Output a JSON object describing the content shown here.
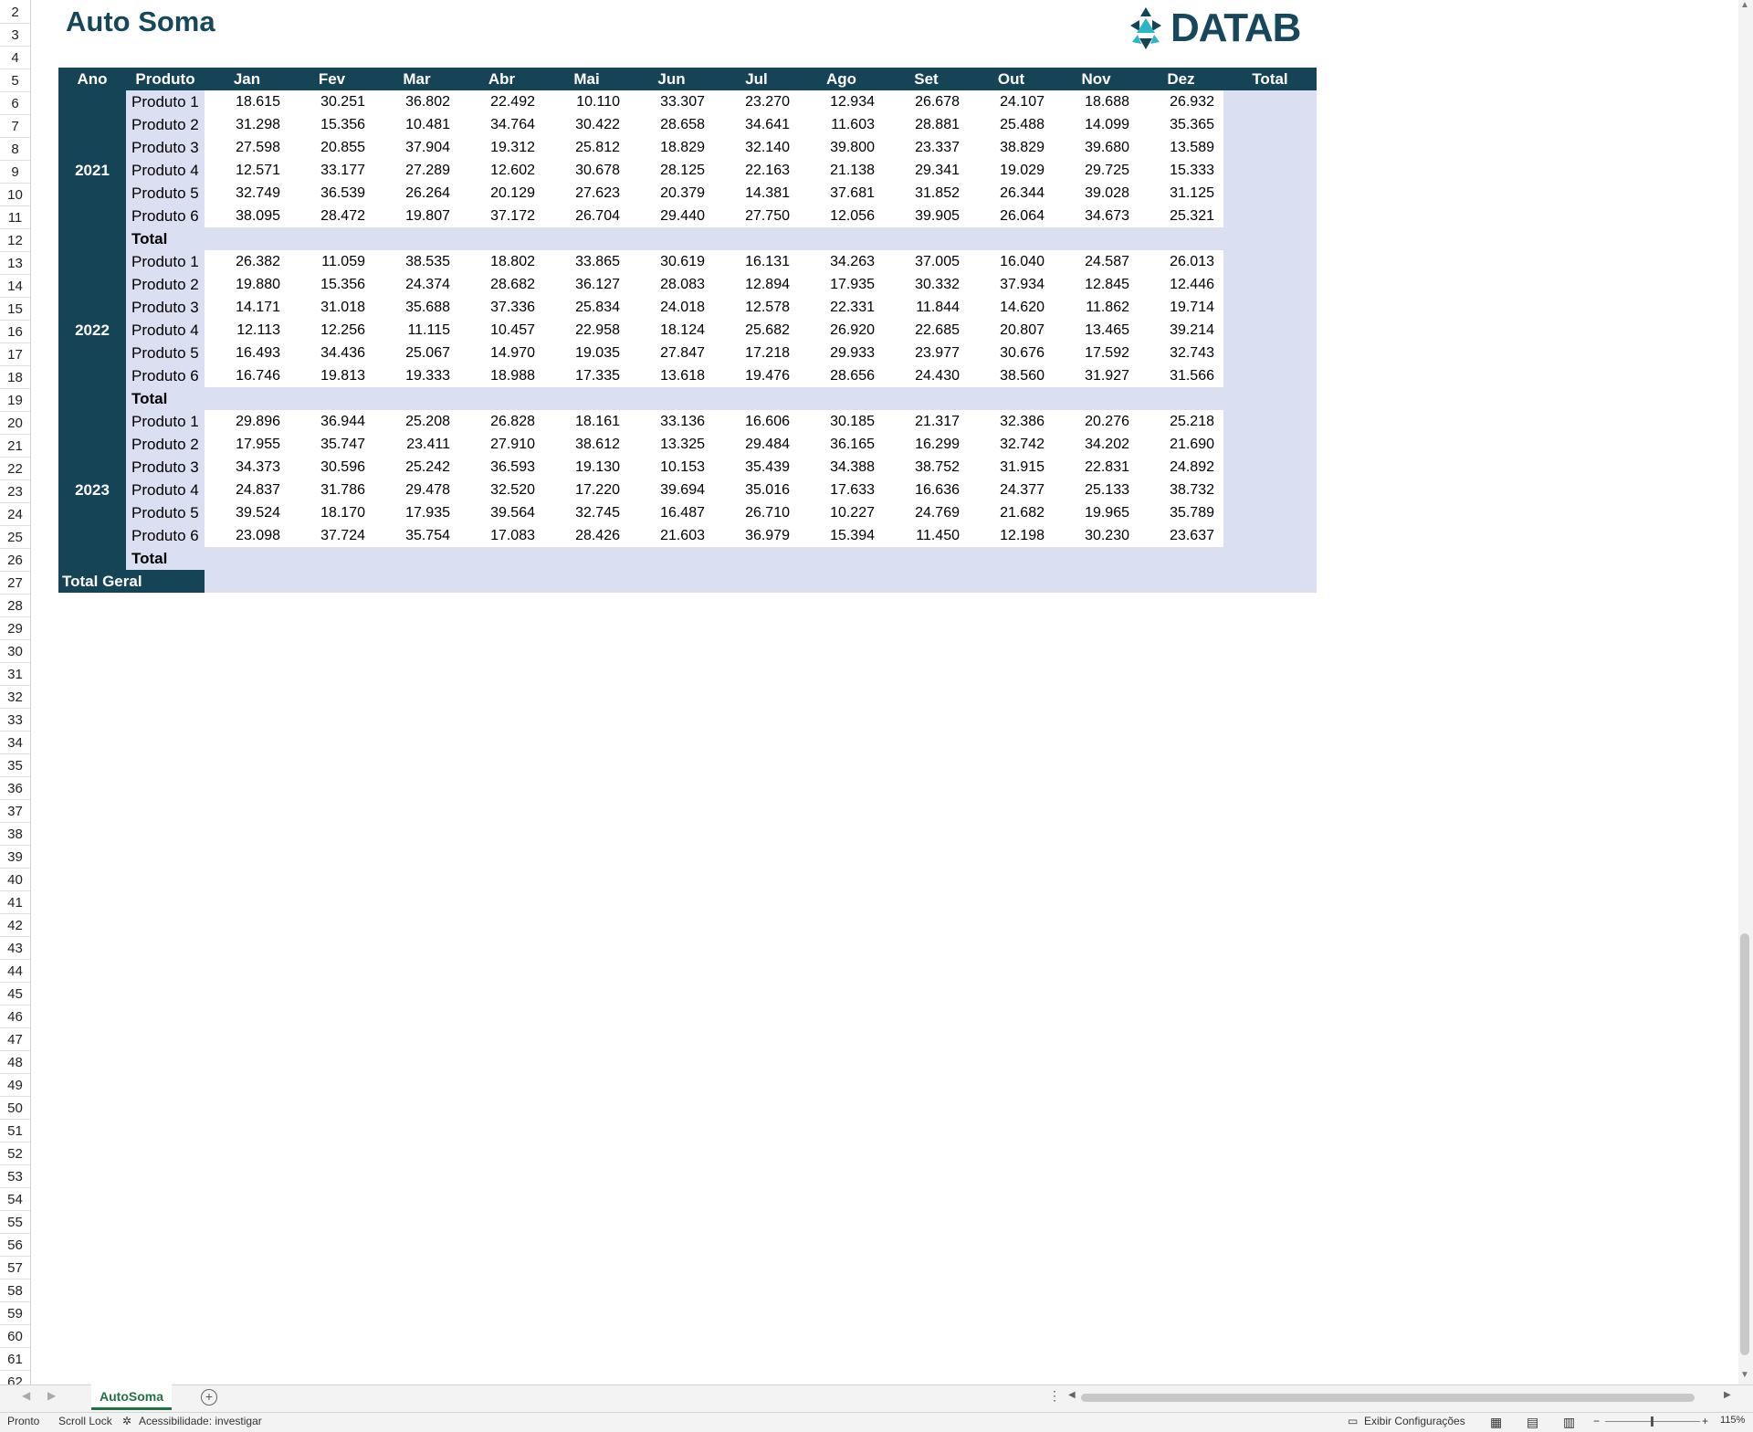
{
  "sheet": {
    "title": "Auto Soma",
    "logo_text": "DATAB",
    "row_numbers": [
      "2",
      "3",
      "4",
      "5",
      "6",
      "7",
      "8",
      "9",
      "10",
      "11",
      "12",
      "13",
      "14",
      "15",
      "16",
      "17",
      "18",
      "19",
      "20",
      "21",
      "22",
      "23",
      "24",
      "25",
      "26",
      "27",
      "28",
      "29",
      "30",
      "31",
      "32",
      "33",
      "34",
      "35",
      "36",
      "37",
      "38",
      "39",
      "40",
      "41",
      "42",
      "43",
      "44",
      "45",
      "46",
      "47",
      "48",
      "49",
      "50",
      "51",
      "52",
      "53",
      "54",
      "55",
      "56",
      "57",
      "58",
      "59",
      "60",
      "61",
      "62"
    ]
  },
  "table": {
    "headers": [
      "Ano",
      "Produto",
      "Jan",
      "Fev",
      "Mar",
      "Abr",
      "Mai",
      "Jun",
      "Jul",
      "Ago",
      "Set",
      "Out",
      "Nov",
      "Dez",
      "Total"
    ],
    "total_label": "Total",
    "total_geral_label": "Total Geral",
    "years": [
      {
        "year": "2021",
        "rows": [
          {
            "produto": "Produto 1",
            "values": [
              "18.615",
              "30.251",
              "36.802",
              "22.492",
              "10.110",
              "33.307",
              "23.270",
              "12.934",
              "26.678",
              "24.107",
              "18.688",
              "26.932"
            ]
          },
          {
            "produto": "Produto 2",
            "values": [
              "31.298",
              "15.356",
              "10.481",
              "34.764",
              "30.422",
              "28.658",
              "34.641",
              "11.603",
              "28.881",
              "25.488",
              "14.099",
              "35.365"
            ]
          },
          {
            "produto": "Produto 3",
            "values": [
              "27.598",
              "20.855",
              "37.904",
              "19.312",
              "25.812",
              "18.829",
              "32.140",
              "39.800",
              "23.337",
              "38.829",
              "39.680",
              "13.589"
            ]
          },
          {
            "produto": "Produto 4",
            "values": [
              "12.571",
              "33.177",
              "27.289",
              "12.602",
              "30.678",
              "28.125",
              "22.163",
              "21.138",
              "29.341",
              "19.029",
              "29.725",
              "15.333"
            ]
          },
          {
            "produto": "Produto 5",
            "values": [
              "32.749",
              "36.539",
              "26.264",
              "20.129",
              "27.623",
              "20.379",
              "14.381",
              "37.681",
              "31.852",
              "26.344",
              "39.028",
              "31.125"
            ]
          },
          {
            "produto": "Produto 6",
            "values": [
              "38.095",
              "28.472",
              "19.807",
              "37.172",
              "26.704",
              "29.440",
              "27.750",
              "12.056",
              "39.905",
              "26.064",
              "34.673",
              "25.321"
            ]
          }
        ]
      },
      {
        "year": "2022",
        "rows": [
          {
            "produto": "Produto 1",
            "values": [
              "26.382",
              "11.059",
              "38.535",
              "18.802",
              "33.865",
              "30.619",
              "16.131",
              "34.263",
              "37.005",
              "16.040",
              "24.587",
              "26.013"
            ]
          },
          {
            "produto": "Produto 2",
            "values": [
              "19.880",
              "15.356",
              "24.374",
              "28.682",
              "36.127",
              "28.083",
              "12.894",
              "17.935",
              "30.332",
              "37.934",
              "12.845",
              "12.446"
            ]
          },
          {
            "produto": "Produto 3",
            "values": [
              "14.171",
              "31.018",
              "35.688",
              "37.336",
              "25.834",
              "24.018",
              "12.578",
              "22.331",
              "11.844",
              "14.620",
              "11.862",
              "19.714"
            ]
          },
          {
            "produto": "Produto 4",
            "values": [
              "12.113",
              "12.256",
              "11.115",
              "10.457",
              "22.958",
              "18.124",
              "25.682",
              "26.920",
              "22.685",
              "20.807",
              "13.465",
              "39.214"
            ]
          },
          {
            "produto": "Produto 5",
            "values": [
              "16.493",
              "34.436",
              "25.067",
              "14.970",
              "19.035",
              "27.847",
              "17.218",
              "29.933",
              "23.977",
              "30.676",
              "17.592",
              "32.743"
            ]
          },
          {
            "produto": "Produto 6",
            "values": [
              "16.746",
              "19.813",
              "19.333",
              "18.988",
              "17.335",
              "13.618",
              "19.476",
              "28.656",
              "24.430",
              "38.560",
              "31.927",
              "31.566"
            ]
          }
        ]
      },
      {
        "year": "2023",
        "rows": [
          {
            "produto": "Produto 1",
            "values": [
              "29.896",
              "36.944",
              "25.208",
              "26.828",
              "18.161",
              "33.136",
              "16.606",
              "30.185",
              "21.317",
              "32.386",
              "20.276",
              "25.218"
            ]
          },
          {
            "produto": "Produto 2",
            "values": [
              "17.955",
              "35.747",
              "23.411",
              "27.910",
              "38.612",
              "13.325",
              "29.484",
              "36.165",
              "16.299",
              "32.742",
              "34.202",
              "21.690"
            ]
          },
          {
            "produto": "Produto 3",
            "values": [
              "34.373",
              "30.596",
              "25.242",
              "36.593",
              "19.130",
              "10.153",
              "35.439",
              "34.388",
              "38.752",
              "31.915",
              "22.831",
              "24.892"
            ]
          },
          {
            "produto": "Produto 4",
            "values": [
              "24.837",
              "31.786",
              "29.478",
              "32.520",
              "17.220",
              "39.694",
              "35.016",
              "17.633",
              "16.636",
              "24.377",
              "25.133",
              "38.732"
            ]
          },
          {
            "produto": "Produto 5",
            "values": [
              "39.524",
              "18.170",
              "17.935",
              "39.564",
              "32.745",
              "16.487",
              "26.710",
              "10.227",
              "24.769",
              "21.682",
              "19.965",
              "35.789"
            ]
          },
          {
            "produto": "Produto 6",
            "values": [
              "23.098",
              "37.724",
              "35.754",
              "17.083",
              "28.426",
              "21.603",
              "36.979",
              "15.394",
              "11.450",
              "12.198",
              "30.230",
              "23.637"
            ]
          }
        ]
      }
    ]
  },
  "tabs": {
    "active_sheet": "AutoSoma",
    "add_sheet_icon": "plus-circle-icon"
  },
  "statusbar": {
    "ready": "Pronto",
    "scroll_lock": "Scroll Lock",
    "accessibility": "Acessibilidade: investigar",
    "display_settings": "Exibir Configurações",
    "zoom": "115%",
    "zoom_out": "−",
    "zoom_in": "+"
  },
  "colors": {
    "header_bg": "#164457",
    "band_bg": "#dae0f2",
    "title": "#17475a",
    "logo_accent": "#29b6c5"
  }
}
